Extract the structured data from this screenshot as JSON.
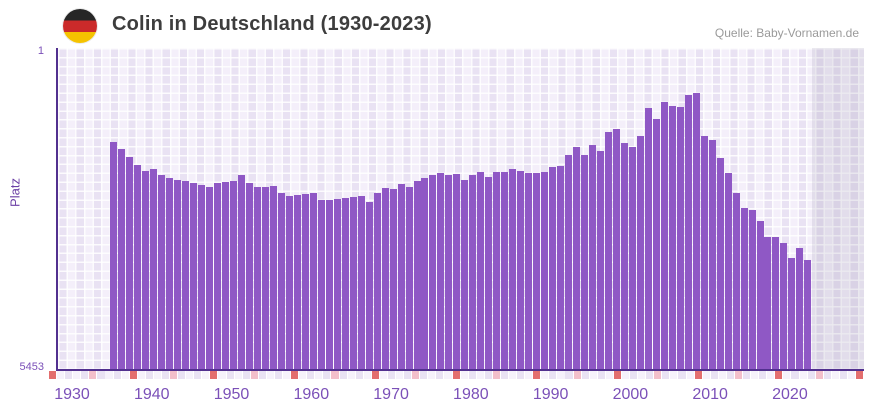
{
  "header": {
    "title": "Colin in Deutschland (1930-2023)",
    "source": "Quelle: Baby-Vornamen.de"
  },
  "chart_data": {
    "type": "bar",
    "title": "Colin in Deutschland (1930-2023)",
    "ylabel": "Platz",
    "y_axis": {
      "top_label": "1",
      "bottom_label": "5453",
      "min": 1,
      "max": 5453,
      "inverted": true
    },
    "x_ticks": [
      "1930",
      "1940",
      "1950",
      "1960",
      "1970",
      "1980",
      "1990",
      "2000",
      "2010",
      "2020"
    ],
    "start_year": 1935,
    "end_year": 2022,
    "note_years_without_bar": "1930-1934 and 2023 show no bar (name not ranked)",
    "ranks": [
      1598,
      1716,
      1852,
      1988,
      2090,
      2056,
      2158,
      2209,
      2243,
      2260,
      2294,
      2328,
      2362,
      2294,
      2277,
      2260,
      2158,
      2294,
      2362,
      2362,
      2345,
      2464,
      2515,
      2498,
      2481,
      2464,
      2583,
      2583,
      2566,
      2549,
      2532,
      2515,
      2617,
      2464,
      2379,
      2396,
      2311,
      2362,
      2260,
      2209,
      2158,
      2124,
      2158,
      2141,
      2243,
      2158,
      2107,
      2192,
      2107,
      2107,
      2056,
      2090,
      2124,
      2124,
      2107,
      2022,
      2005,
      1818,
      1683,
      1818,
      1649,
      1751,
      1428,
      1377,
      1615,
      1683,
      1496,
      1020,
      1207,
      918,
      986,
      1003,
      799,
      765,
      1496,
      1564,
      1869,
      2124,
      2464,
      2719,
      2753,
      2940,
      3211,
      3211,
      3313,
      3568,
      3398,
      3602
    ]
  },
  "timeline_strip": {
    "square_count": 101,
    "red_every": 10,
    "pink_offset": 5
  },
  "colors": {
    "bar": "#8f58c5",
    "axis_line": "#52308f",
    "tick_label": "#7b50b8",
    "strip_red": "#e36e6e",
    "strip_pink": "#f3bfca",
    "strip_light": "#f6f2fb",
    "strip_lavender": "#e9e2f3",
    "flag_black": "#262626",
    "flag_red": "#cb2a2a",
    "flag_gold": "#f5c300"
  }
}
